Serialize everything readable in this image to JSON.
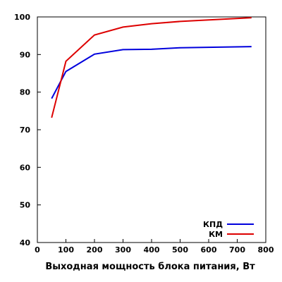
{
  "chart_data": {
    "type": "line",
    "title": "",
    "xlabel": "Выходная мощность блока питания, Вт",
    "ylabel": "",
    "xlim": [
      0,
      800
    ],
    "ylim": [
      40,
      100
    ],
    "xticks": [
      0,
      100,
      200,
      300,
      400,
      500,
      600,
      700,
      800
    ],
    "yticks": [
      40,
      50,
      60,
      70,
      80,
      90,
      100
    ],
    "grid": false,
    "legend_position": "bottom-right",
    "series": [
      {
        "name": "КПД",
        "color": "#0000dd",
        "x": [
          50,
          100,
          200,
          300,
          400,
          500,
          750
        ],
        "y": [
          78.3,
          85.5,
          90.1,
          91.3,
          91.4,
          91.8,
          92.1
        ]
      },
      {
        "name": "КМ",
        "color": "#dd0000",
        "x": [
          50,
          100,
          200,
          300,
          400,
          500,
          750
        ],
        "y": [
          73.2,
          88.2,
          95.2,
          97.3,
          98.2,
          98.8,
          99.8
        ]
      }
    ]
  }
}
